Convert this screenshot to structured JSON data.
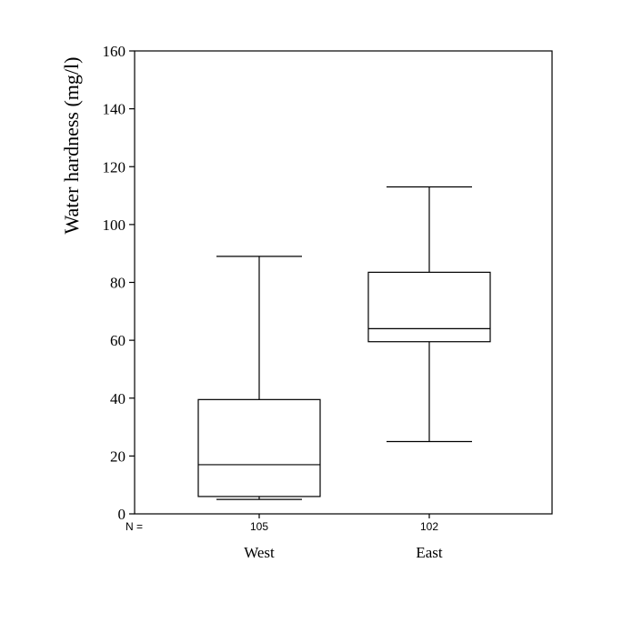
{
  "chart_data": {
    "type": "boxplot",
    "ylabel": "Water hardness (mg/l)",
    "ylim": [
      0,
      160
    ],
    "yticks": [
      0,
      20,
      40,
      60,
      80,
      100,
      120,
      140,
      160
    ],
    "n_prefix": "N =",
    "grid": false,
    "groups": [
      {
        "name": "West",
        "n": "105",
        "min": 5,
        "q1": 6,
        "median": 17,
        "q3": 39.5,
        "max": 89
      },
      {
        "name": "East",
        "n": "102",
        "min": 25,
        "q1": 59.5,
        "median": 64,
        "q3": 83.5,
        "max": 113
      }
    ]
  }
}
